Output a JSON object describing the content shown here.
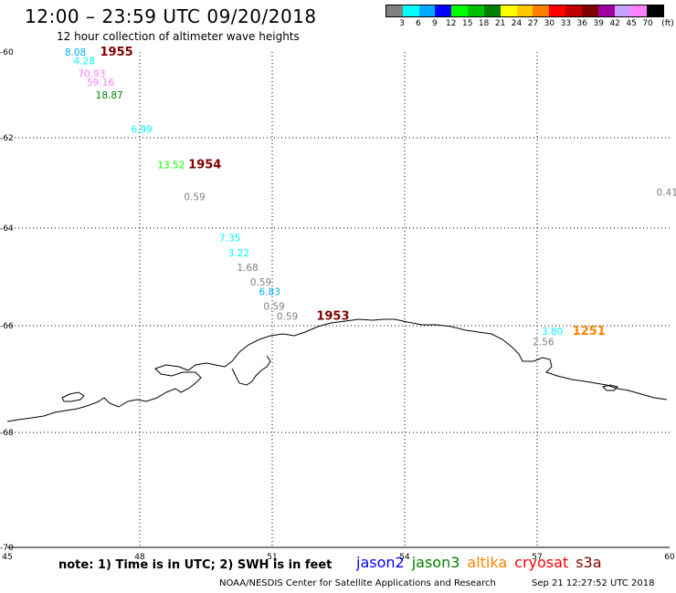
{
  "header": {
    "title": "12:00 – 23:59 UTC 09/20/2018",
    "subtitle": "12 hour collection of altimeter wave heights"
  },
  "colorbar": {
    "colors": [
      "#808080",
      "#00ffff",
      "#00aaff",
      "#0000ff",
      "#00ff00",
      "#00c000",
      "#008000",
      "#ffff00",
      "#ffc800",
      "#ff8000",
      "#ff0000",
      "#c00000",
      "#800000",
      "#a000a0",
      "#c8a0ff",
      "#ff80ff",
      "#000000"
    ],
    "labels": [
      "3",
      "6",
      "9",
      "12",
      "15",
      "18",
      "21",
      "24",
      "27",
      "30",
      "33",
      "36",
      "39",
      "42",
      "45",
      "70",
      "(ft)"
    ]
  },
  "axes": {
    "lon_labels": [
      "45",
      "48",
      "51",
      "54",
      "57",
      "60"
    ],
    "lat_labels": [
      "-60",
      "-62",
      "-64",
      "-66",
      "-68",
      "-70"
    ]
  },
  "readings": [
    {
      "text": "8.08",
      "color": "#00aaff",
      "lon": 46.3,
      "lat": -60.0
    },
    {
      "text": "4.28",
      "color": "#00ffff",
      "lon": 46.5,
      "lat": -60.2
    },
    {
      "text": "70.93",
      "color": "#ff80ff",
      "lon": 46.6,
      "lat": -60.5
    },
    {
      "text": "59.16",
      "color": "#ff80ff",
      "lon": 46.8,
      "lat": -60.7
    },
    {
      "text": "18.87",
      "color": "#008000",
      "lon": 47.0,
      "lat": -61.0
    },
    {
      "text": "6.99",
      "color": "#00ffff",
      "lon": 47.8,
      "lat": -61.8
    },
    {
      "text": "13.52",
      "color": "#00ff00",
      "lon": 48.4,
      "lat": -62.6
    },
    {
      "text": "0.59",
      "color": "#808080",
      "lon": 49.0,
      "lat": -63.3
    },
    {
      "text": "0.41",
      "color": "#808080",
      "lon": 59.7,
      "lat": -63.2
    },
    {
      "text": "7.35",
      "color": "#00ffff",
      "lon": 49.8,
      "lat": -64.2
    },
    {
      "text": "3.22",
      "color": "#00ffff",
      "lon": 50.0,
      "lat": -64.5
    },
    {
      "text": "1.68",
      "color": "#808080",
      "lon": 50.2,
      "lat": -64.8
    },
    {
      "text": "0.59",
      "color": "#808080",
      "lon": 50.5,
      "lat": -65.1
    },
    {
      "text": "6.83",
      "color": "#00aaff",
      "lon": 50.7,
      "lat": -65.3
    },
    {
      "text": "0.59",
      "color": "#808080",
      "lon": 50.8,
      "lat": -65.6
    },
    {
      "text": "0.59",
      "color": "#808080",
      "lon": 51.1,
      "lat": -65.8
    },
    {
      "text": "3.80",
      "color": "#00ffff",
      "lon": 57.1,
      "lat": -66.1
    },
    {
      "text": "2.56",
      "color": "#808080",
      "lon": 56.9,
      "lat": -66.3
    }
  ],
  "passes": [
    {
      "text": "1955",
      "color": "#800000",
      "lon": 47.1,
      "lat": -60.0
    },
    {
      "text": "1954",
      "color": "#800000",
      "lon": 49.1,
      "lat": -62.6
    },
    {
      "text": "1953",
      "color": "#800000",
      "lon": 52.0,
      "lat": -65.8
    },
    {
      "text": "1251",
      "color": "#ff8000",
      "lon": 57.8,
      "lat": -66.1
    }
  ],
  "footer": {
    "note": "note: 1) Time is in UTC; 2) SWH is in feet",
    "satellites": [
      {
        "name": "jason2",
        "color": "#0000ff"
      },
      {
        "name": "jason3",
        "color": "#008000"
      },
      {
        "name": "altika",
        "color": "#ff8000"
      },
      {
        "name": "cryosat",
        "color": "#ff0000"
      },
      {
        "name": "s3a",
        "color": "#800000"
      }
    ],
    "credit": "NOAA/NESDIS Center for Satellite Applications and Research",
    "timestamp": "Sep 21 12:27:52 UTC 2018"
  }
}
